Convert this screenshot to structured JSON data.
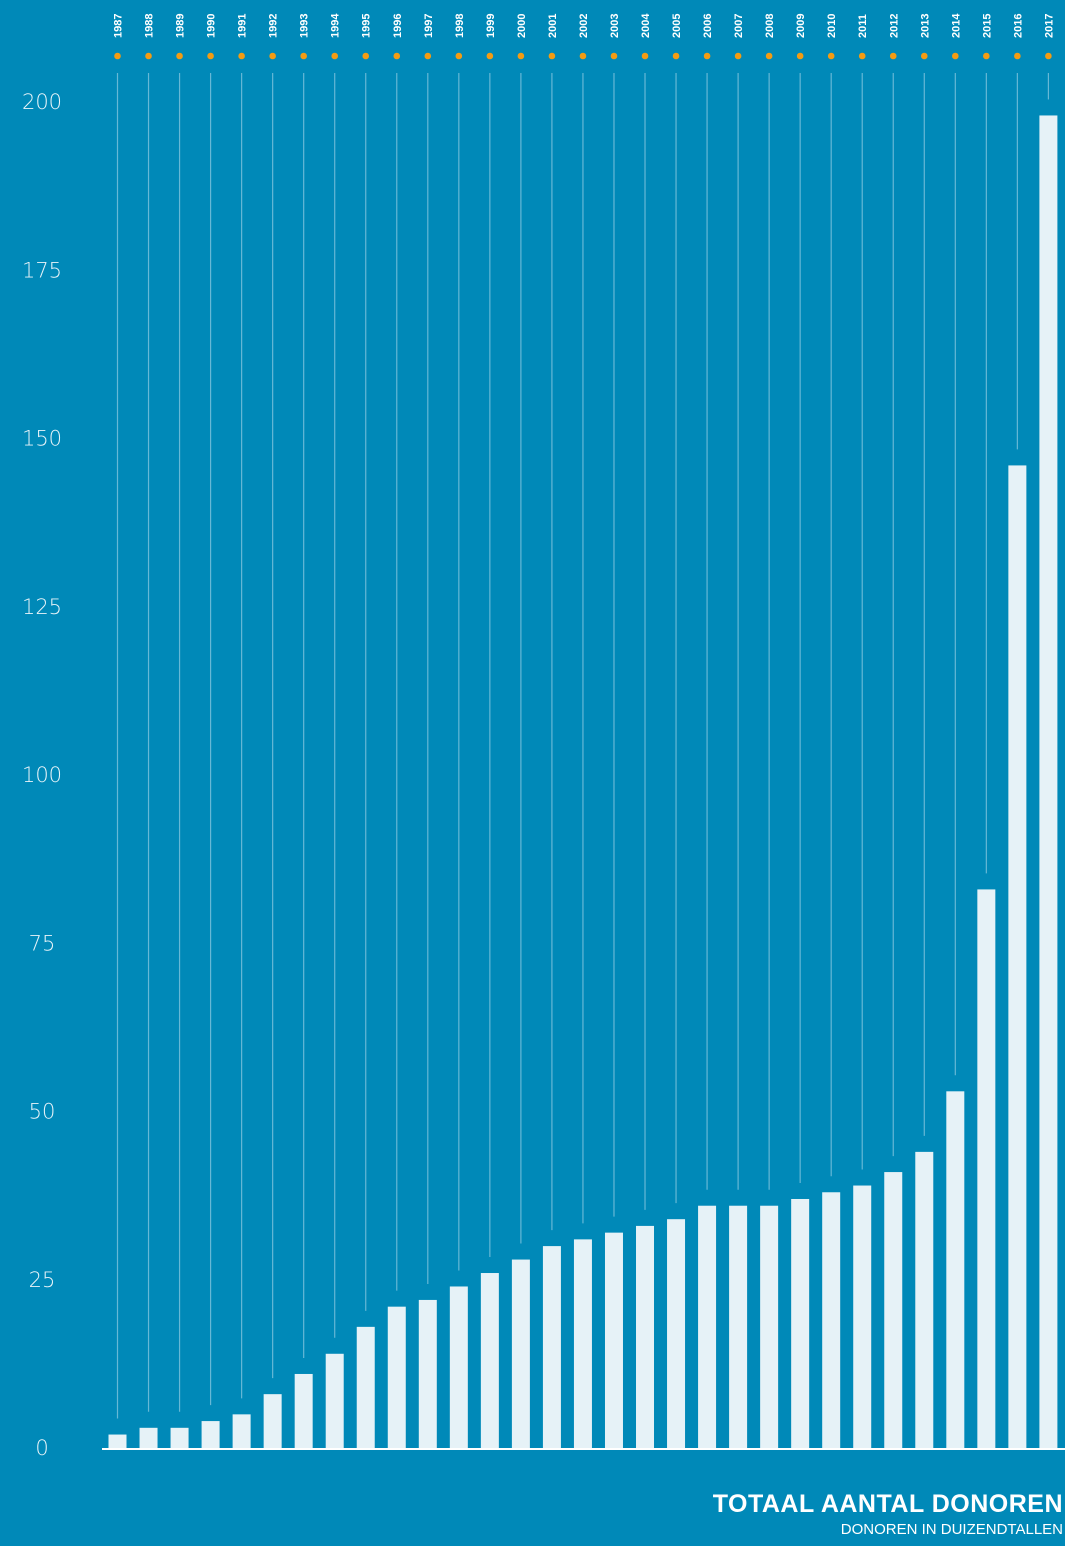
{
  "colors": {
    "background": "#0089b8",
    "bar": "#e6f2f7",
    "dot": "#f39c12",
    "stem": "#66b8d6",
    "text": "#ffffff"
  },
  "title": "TOTAAL AANTAL DONOREN",
  "subtitle": "DONOREN IN DUIZENDTALLEN",
  "chart_data": {
    "type": "bar",
    "title": "TOTAAL AANTAL DONOREN",
    "subtitle": "DONOREN IN DUIZENDTALLEN",
    "xlabel": "",
    "ylabel": "",
    "categories": [
      "1987",
      "1988",
      "1989",
      "1990",
      "1991",
      "1992",
      "1993",
      "1994",
      "1995",
      "1996",
      "1997",
      "1998",
      "1999",
      "2000",
      "2001",
      "2002",
      "2003",
      "2004",
      "2005",
      "2006",
      "2007",
      "2008",
      "2009",
      "2010",
      "2011",
      "2012",
      "2013",
      "2014",
      "2015",
      "2016",
      "2017"
    ],
    "values": [
      2,
      3,
      3,
      4,
      5,
      8,
      11,
      14,
      18,
      21,
      22,
      24,
      26,
      28,
      30,
      31,
      32,
      33,
      34,
      36,
      36,
      36,
      37,
      38,
      39,
      41,
      44,
      53,
      83,
      146,
      198
    ],
    "ylim": [
      0,
      200
    ],
    "yticks": [
      0,
      25,
      50,
      75,
      100,
      125,
      150,
      175,
      200
    ],
    "grid": false,
    "legend": "none",
    "x_axis_position": "top"
  }
}
